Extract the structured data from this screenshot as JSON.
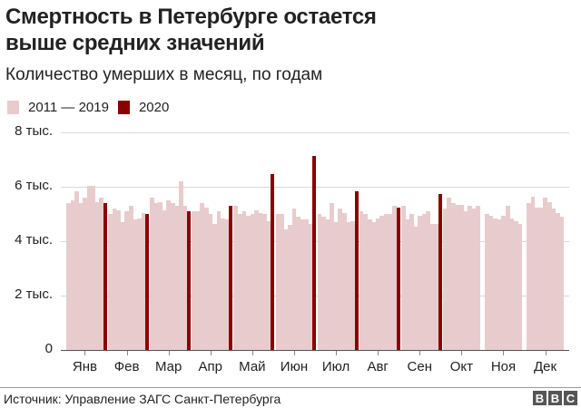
{
  "header": {
    "title_line1": "Смертность в Петербурге остается",
    "title_line2": "выше средних значений",
    "subtitle": "Количество умерших в месяц, по годам"
  },
  "legend": [
    {
      "label": "2011 — 2019",
      "color": "#e8cccd"
    },
    {
      "label": "2020",
      "color": "#8b0000"
    }
  ],
  "footer": {
    "source": "Источник: Управление ЗАГС Санкт-Петербурга",
    "logo": [
      "B",
      "B",
      "C"
    ]
  },
  "chart_data": {
    "type": "bar",
    "title": "Смертность в Петербурге остается выше средних значений",
    "subtitle": "Количество умерших в месяц, по годам",
    "xlabel": "",
    "ylabel": "",
    "ylim": [
      0,
      8000
    ],
    "yticks": [
      0,
      2000,
      4000,
      6000,
      8000
    ],
    "ytick_labels": [
      "0",
      "2 тыс.",
      "4 тыс.",
      "6 тыс.",
      "8 тыс."
    ],
    "grid": true,
    "legend_position": "top-left",
    "categories": [
      "Янв",
      "Фев",
      "Мар",
      "Апр",
      "Май",
      "Июн",
      "Июл",
      "Авг",
      "Сен",
      "Окт",
      "Ноя",
      "Дек"
    ],
    "series": [
      {
        "name": "2011",
        "values": [
          5400,
          5000,
          5600,
          5100,
          5300,
          5000,
          5000,
          5100,
          5300,
          5200,
          5000,
          5400
        ]
      },
      {
        "name": "2012",
        "values": [
          5500,
          5200,
          5400,
          5100,
          5000,
          5000,
          4900,
          5000,
          4800,
          5600,
          4950,
          5650
        ]
      },
      {
        "name": "2013",
        "values": [
          5850,
          5150,
          5450,
          5400,
          5100,
          4450,
          4800,
          4800,
          5000,
          5400,
          4850,
          5250
        ]
      },
      {
        "name": "2014",
        "values": [
          5400,
          4700,
          5150,
          5250,
          4950,
          4600,
          5400,
          4700,
          4550,
          5350,
          4800,
          5250
        ]
      },
      {
        "name": "2015",
        "values": [
          5600,
          5100,
          5500,
          5000,
          5000,
          5200,
          4700,
          4850,
          4950,
          5350,
          4950,
          5600
        ]
      },
      {
        "name": "2016",
        "values": [
          6050,
          5300,
          5400,
          4650,
          5150,
          4900,
          5200,
          4950,
          5000,
          5100,
          5300,
          5450
        ]
      },
      {
        "name": "2017",
        "values": [
          6050,
          4800,
          5300,
          5100,
          5050,
          4800,
          5050,
          5000,
          5100,
          5300,
          4850,
          5200
        ]
      },
      {
        "name": "2018",
        "values": [
          5450,
          4850,
          6200,
          4850,
          5000,
          4800,
          4700,
          5000,
          4650,
          5200,
          4750,
          5050
        ]
      },
      {
        "name": "2019",
        "values": [
          5600,
          5050,
          5300,
          4800,
          4750,
          4650,
          4750,
          5300,
          4650,
          5300,
          4650,
          4900
        ]
      },
      {
        "name": "2020",
        "values": [
          5400,
          5000,
          5100,
          5300,
          6470,
          7130,
          5830,
          5250,
          5750,
          null,
          null,
          null
        ]
      }
    ]
  }
}
